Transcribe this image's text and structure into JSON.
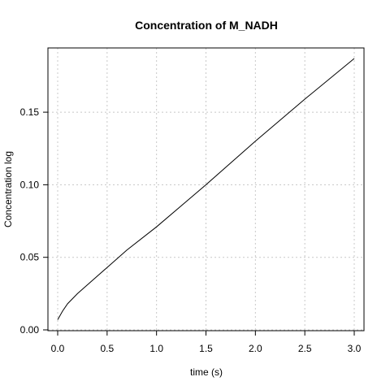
{
  "chart_data": {
    "type": "line",
    "title": "Concentration of M_NADH",
    "xlabel": "time (s)",
    "ylabel": "Concentration log",
    "xlim": [
      0,
      3
    ],
    "ylim": [
      0,
      0.187
    ],
    "xticks": [
      0,
      0.5,
      1,
      1.5,
      2,
      2.5,
      3
    ],
    "xtick_labels": [
      "0.0",
      "0.5",
      "1.0",
      "1.5",
      "2.0",
      "2.5",
      "3.0"
    ],
    "yticks": [
      0,
      0.05,
      0.1,
      0.15
    ],
    "ytick_labels": [
      "0.00",
      "0.05",
      "0.10",
      "0.15"
    ],
    "grid": true,
    "series": [
      {
        "color": "#000000",
        "x": [
          0,
          0.05,
          0.1,
          0.2,
          0.3,
          0.5,
          0.7,
          1.0,
          1.5,
          2.0,
          2.5,
          3.0
        ],
        "y": [
          0.007,
          0.013,
          0.018,
          0.025,
          0.031,
          0.043,
          0.055,
          0.071,
          0.1,
          0.13,
          0.159,
          0.187
        ]
      }
    ]
  }
}
